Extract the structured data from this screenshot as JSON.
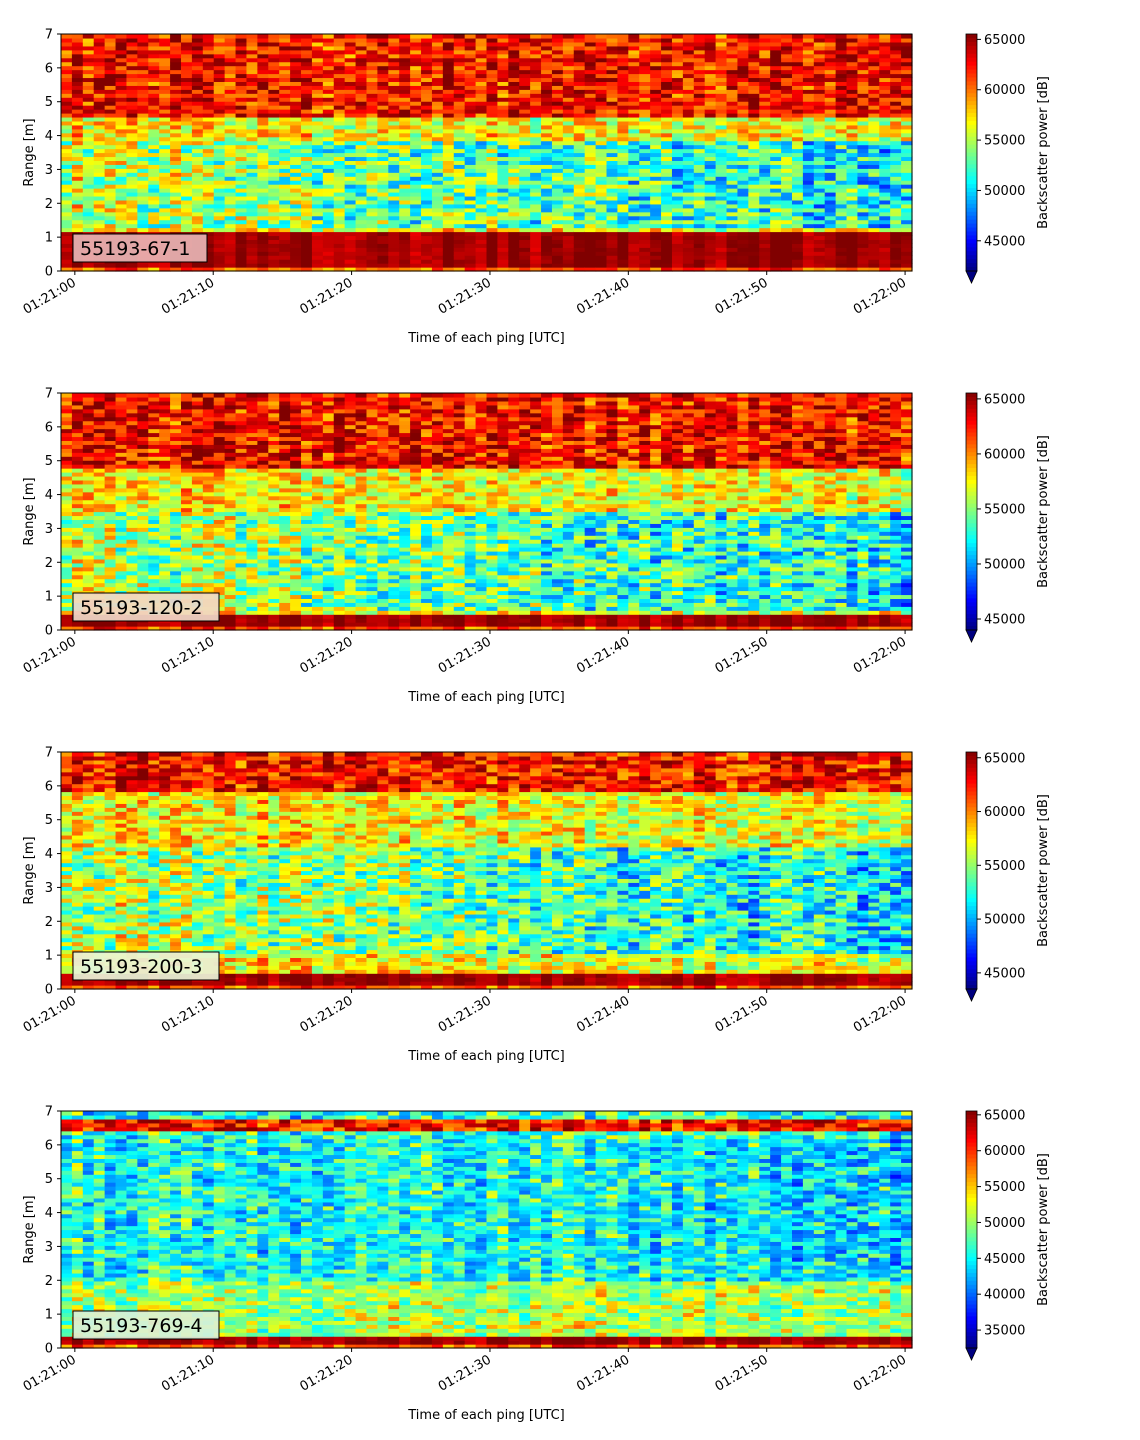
{
  "chart_data": [
    {
      "type": "heatmap",
      "panel_label": "55193-67-1",
      "xlabel": "Time of each ping [UTC]",
      "ylabel": "Range [m]",
      "colorbar_label": "Backscatter power [dB]",
      "colormap": "jet",
      "colorbar_extend": "min",
      "xlim": [
        "01:20:59",
        "01:22:00.5"
      ],
      "ylim": [
        0,
        7
      ],
      "x_ticks": [
        "01:21:00",
        "01:21:10",
        "01:21:20",
        "01:21:30",
        "01:21:40",
        "01:21:50",
        "01:22:00"
      ],
      "y_ticks": [
        0,
        1,
        2,
        3,
        4,
        5,
        6,
        7
      ],
      "colorbar_range": [
        42000,
        65535
      ],
      "colorbar_ticks": [
        45000,
        50000,
        55000,
        60000,
        65000
      ],
      "label_box_color": "#e8b4b4",
      "profile": {
        "near_high": [
          0.15,
          1.2
        ],
        "low_band": [
          1.3,
          3.8
        ],
        "high_top": [
          4.5,
          7
        ],
        "trend": "lower values increase toward end"
      },
      "seed": 11
    },
    {
      "type": "heatmap",
      "panel_label": "55193-120-2",
      "xlabel": "Time of each ping [UTC]",
      "ylabel": "Range [m]",
      "colorbar_label": "Backscatter power [dB]",
      "colormap": "jet",
      "colorbar_extend": "min",
      "xlim": [
        "01:20:59",
        "01:22:00.5"
      ],
      "ylim": [
        0,
        7
      ],
      "x_ticks": [
        "01:21:00",
        "01:21:10",
        "01:21:20",
        "01:21:30",
        "01:21:40",
        "01:21:50",
        "01:22:00"
      ],
      "y_ticks": [
        0,
        1,
        2,
        3,
        4,
        5,
        6,
        7
      ],
      "colorbar_range": [
        44000,
        65535
      ],
      "colorbar_ticks": [
        45000,
        50000,
        55000,
        60000,
        65000
      ],
      "label_box_color": "#f0d8c8",
      "profile": {
        "near_high": [
          0.1,
          0.45
        ],
        "low_band": [
          0.6,
          3.5
        ],
        "high_top": [
          4.8,
          7
        ],
        "trend": "lower values increase toward end"
      },
      "seed": 23
    },
    {
      "type": "heatmap",
      "panel_label": "55193-200-3",
      "xlabel": "Time of each ping [UTC]",
      "ylabel": "Range [m]",
      "colorbar_label": "Backscatter power [dB]",
      "colormap": "jet",
      "colorbar_extend": "min",
      "xlim": [
        "01:20:59",
        "01:22:00.5"
      ],
      "ylim": [
        0,
        7
      ],
      "x_ticks": [
        "01:21:00",
        "01:21:10",
        "01:21:20",
        "01:21:30",
        "01:21:40",
        "01:21:50",
        "01:22:00"
      ],
      "y_ticks": [
        0,
        1,
        2,
        3,
        4,
        5,
        6,
        7
      ],
      "colorbar_range": [
        43500,
        65535
      ],
      "colorbar_ticks": [
        45000,
        50000,
        55000,
        60000,
        65000
      ],
      "label_box_color": "#e8f4d8",
      "profile": {
        "near_high": [
          0.15,
          0.45
        ],
        "low_band": [
          1.0,
          4.2
        ],
        "high_top": [
          5.8,
          7
        ],
        "trend": "lower values increase toward end"
      },
      "seed": 37
    },
    {
      "type": "heatmap",
      "panel_label": "55193-769-4",
      "xlabel": "Time of each ping [UTC]",
      "ylabel": "Range [m]",
      "colorbar_label": "Backscatter power [dB]",
      "colormap": "jet",
      "colorbar_extend": "min",
      "xlim": [
        "01:20:59",
        "01:22:00.5"
      ],
      "ylim": [
        0,
        7
      ],
      "x_ticks": [
        "01:21:00",
        "01:21:10",
        "01:21:20",
        "01:21:30",
        "01:21:40",
        "01:21:50",
        "01:22:00"
      ],
      "y_ticks": [
        0,
        1,
        2,
        3,
        4,
        5,
        6,
        7
      ],
      "colorbar_range": [
        32500,
        65535
      ],
      "colorbar_ticks": [
        35000,
        40000,
        45000,
        50000,
        55000,
        60000,
        65000
      ],
      "label_box_color": "#d8f0d8",
      "profile": {
        "near_high": [
          0.1,
          0.35
        ],
        "low_band": [
          2.0,
          6.2
        ],
        "high_top": [
          6.4,
          6.8
        ],
        "trend": "mostly low values"
      },
      "seed": 53
    }
  ]
}
